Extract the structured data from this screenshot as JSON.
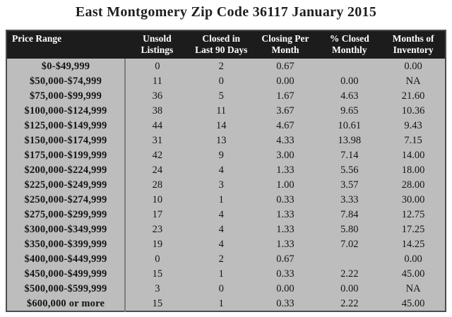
{
  "title": "East Montgomery Zip Code 36117 January 2015",
  "colors": {
    "page_background": "#ffffff",
    "header_background": "#1c1c1c",
    "header_text": "#ffffff",
    "body_background": "#bdbdbd",
    "body_text": "#141414",
    "divider": "#7f7f7f",
    "outer_border": "#4c4c4c"
  },
  "chart_data": {
    "type": "table",
    "title": "East Montgomery Zip Code 36117 January 2015",
    "columns": [
      "Price Range",
      "Unsold\nListings",
      "Closed in\nLast 90 Days",
      "Closing Per\nMonth",
      "% Closed\nMonthly",
      "Months of\nInventory"
    ],
    "rows": [
      [
        "$0-$49,999",
        "0",
        "2",
        "0.67",
        "",
        "0.00"
      ],
      [
        "$50,000-$74,999",
        "11",
        "0",
        "0.00",
        "0.00",
        "NA"
      ],
      [
        "$75,000-$99,999",
        "36",
        "5",
        "1.67",
        "4.63",
        "21.60"
      ],
      [
        "$100,000-$124,999",
        "38",
        "11",
        "3.67",
        "9.65",
        "10.36"
      ],
      [
        "$125,000-$149,999",
        "44",
        "14",
        "4.67",
        "10.61",
        "9.43"
      ],
      [
        "$150,000-$174,999",
        "31",
        "13",
        "4.33",
        "13.98",
        "7.15"
      ],
      [
        "$175,000-$199,999",
        "42",
        "9",
        "3.00",
        "7.14",
        "14.00"
      ],
      [
        "$200,000-$224,999",
        "24",
        "4",
        "1.33",
        "5.56",
        "18.00"
      ],
      [
        "$225,000-$249,999",
        "28",
        "3",
        "1.00",
        "3.57",
        "28.00"
      ],
      [
        "$250,000-$274,999",
        "10",
        "1",
        "0.33",
        "3.33",
        "30.00"
      ],
      [
        "$275,000-$299,999",
        "17",
        "4",
        "1.33",
        "7.84",
        "12.75"
      ],
      [
        "$300,000-$349,999",
        "23",
        "4",
        "1.33",
        "5.80",
        "17.25"
      ],
      [
        "$350,000-$399,999",
        "19",
        "4",
        "1.33",
        "7.02",
        "14.25"
      ],
      [
        "$400,000-$449,999",
        "0",
        "2",
        "0.67",
        "",
        "0.00"
      ],
      [
        "$450,000-$499,999",
        "15",
        "1",
        "0.33",
        "2.22",
        "45.00"
      ],
      [
        "$500,000-$599,999",
        "3",
        "0",
        "0.00",
        "0.00",
        "NA"
      ],
      [
        "$600,000 or more",
        "15",
        "1",
        "0.33",
        "2.22",
        "45.00"
      ]
    ]
  }
}
